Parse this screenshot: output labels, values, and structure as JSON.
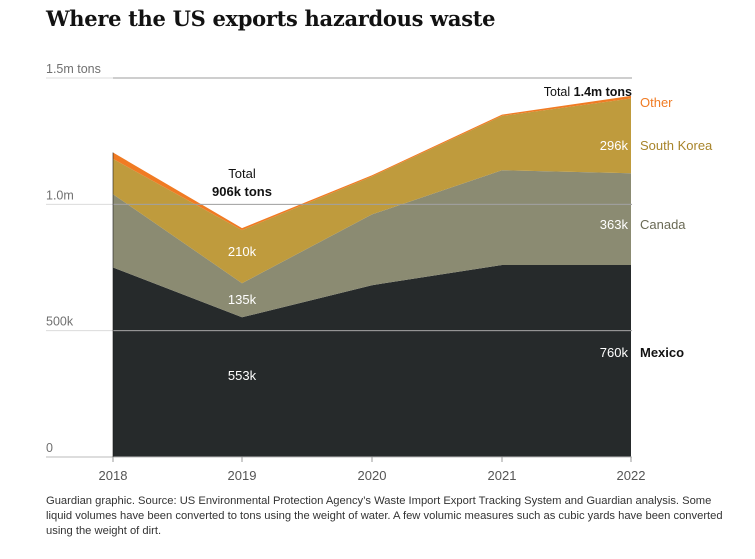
{
  "colors": {
    "Mexico": "#262a2b",
    "Canada": "#8b8b72",
    "South Korea": "#bf9b3d",
    "Other": "#f07b23",
    "grid": "#dcdcdc",
    "axis_text": "#707070"
  },
  "chart_data": {
    "type": "area",
    "stacked": true,
    "title": "Where the US exports hazardous waste",
    "x": [
      2018,
      2019,
      2020,
      2021,
      2022
    ],
    "ylim": [
      0,
      1500000
    ],
    "yticks": [
      {
        "value": 0,
        "label": "0"
      },
      {
        "value": 500000,
        "label": "500k"
      },
      {
        "value": 1000000,
        "label": "1.0m"
      },
      {
        "value": 1500000,
        "label": "1.5m tons"
      }
    ],
    "series": [
      {
        "name": "Mexico",
        "values": [
          750000,
          553000,
          680000,
          760000,
          760000
        ]
      },
      {
        "name": "Canada",
        "values": [
          290000,
          135000,
          280000,
          375000,
          363000
        ]
      },
      {
        "name": "South Korea",
        "values": [
          140000,
          210000,
          150000,
          215000,
          296000
        ]
      },
      {
        "name": "Other",
        "values": [
          25000,
          8000,
          5000,
          5000,
          10000
        ]
      }
    ],
    "annotations": {
      "total_2019": {
        "prefix": "Total",
        "value": "906k tons"
      },
      "total_2022": {
        "prefix": "Total ",
        "value": "1.4m tons"
      },
      "labels_2019": {
        "south_korea": "210k",
        "canada": "135k",
        "mexico": "553k"
      },
      "labels_2022": {
        "south_korea": "296k",
        "canada": "363k",
        "mexico": "760k"
      }
    }
  },
  "source": "Guardian graphic. Source: US Environmental Protection Agency’s Waste Import Export Tracking System and Guardian analysis. Some liquid volumes have been converted to tons using the weight of water. A few volumic measures such as cubic yards have been converted using the weight of dirt."
}
